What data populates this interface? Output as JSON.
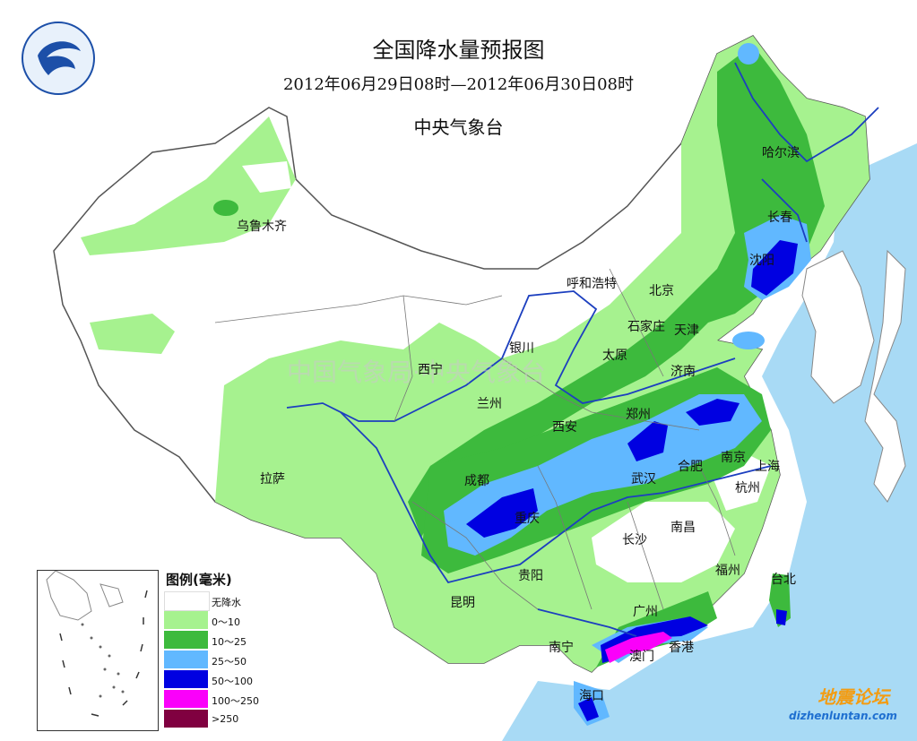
{
  "title": "全国降水量预报图",
  "date_range": "2012年06月29日08时—2012年06月30日08时",
  "agency": "中央气象台",
  "watermark": "中国气象局·中央气象台",
  "cities": [
    {
      "id": "urumqi",
      "name": "乌鲁木齐"
    },
    {
      "id": "harbin",
      "name": "哈尔滨"
    },
    {
      "id": "changchun",
      "name": "长春"
    },
    {
      "id": "shenyang",
      "name": "沈阳"
    },
    {
      "id": "hohhot",
      "name": "呼和浩特"
    },
    {
      "id": "beijing",
      "name": "北京"
    },
    {
      "id": "shijiazhuang",
      "name": "石家庄"
    },
    {
      "id": "tianjin",
      "name": "天津"
    },
    {
      "id": "yinchuan",
      "name": "银川"
    },
    {
      "id": "taiyuan",
      "name": "太原"
    },
    {
      "id": "xining",
      "name": "西宁"
    },
    {
      "id": "jinan",
      "name": "济南"
    },
    {
      "id": "lanzhou",
      "name": "兰州"
    },
    {
      "id": "zhengzhou",
      "name": "郑州"
    },
    {
      "id": "xian",
      "name": "西安"
    },
    {
      "id": "nanjing",
      "name": "南京"
    },
    {
      "id": "hefei",
      "name": "合肥"
    },
    {
      "id": "shanghai",
      "name": "上海"
    },
    {
      "id": "chengdu",
      "name": "成都"
    },
    {
      "id": "wuhan",
      "name": "武汉"
    },
    {
      "id": "lhasa",
      "name": "拉萨"
    },
    {
      "id": "hangzhou",
      "name": "杭州"
    },
    {
      "id": "chongqing",
      "name": "重庆"
    },
    {
      "id": "nanchang",
      "name": "南昌"
    },
    {
      "id": "changsha",
      "name": "长沙"
    },
    {
      "id": "fuzhou",
      "name": "福州"
    },
    {
      "id": "guiyang",
      "name": "贵阳"
    },
    {
      "id": "taibei",
      "name": "台北"
    },
    {
      "id": "kunming",
      "name": "昆明"
    },
    {
      "id": "guangzhou",
      "name": "广州"
    },
    {
      "id": "nanning",
      "name": "南宁"
    },
    {
      "id": "aomen",
      "name": "澳门"
    },
    {
      "id": "xianggang",
      "name": "香港"
    },
    {
      "id": "haikou",
      "name": "海口"
    }
  ],
  "legend": {
    "title": "图例(毫米)",
    "items": [
      {
        "label": "无降水",
        "color": "#ffffff"
      },
      {
        "label": "0～10",
        "color": "#a6f28f"
      },
      {
        "label": "10～25",
        "color": "#3dba3d"
      },
      {
        "label": "25～50",
        "color": "#61b8ff"
      },
      {
        "label": "50～100",
        "color": "#0000e1"
      },
      {
        "label": "100～250",
        "color": "#fa00fa"
      },
      {
        "label": ">250",
        "color": "#800040"
      }
    ]
  },
  "colors": {
    "no_rain": "#ffffff",
    "r0_10": "#a6f28f",
    "r10_25": "#3dba3d",
    "r25_50": "#61b8ff",
    "r50_100": "#0000e1",
    "r100_250": "#fa00fa",
    "sea": "#a8daf5",
    "river": "#1c3fbf",
    "border": "#555555"
  },
  "corner_brand": {
    "cn": "地震论坛",
    "url": "dizhenluntan.com"
  }
}
